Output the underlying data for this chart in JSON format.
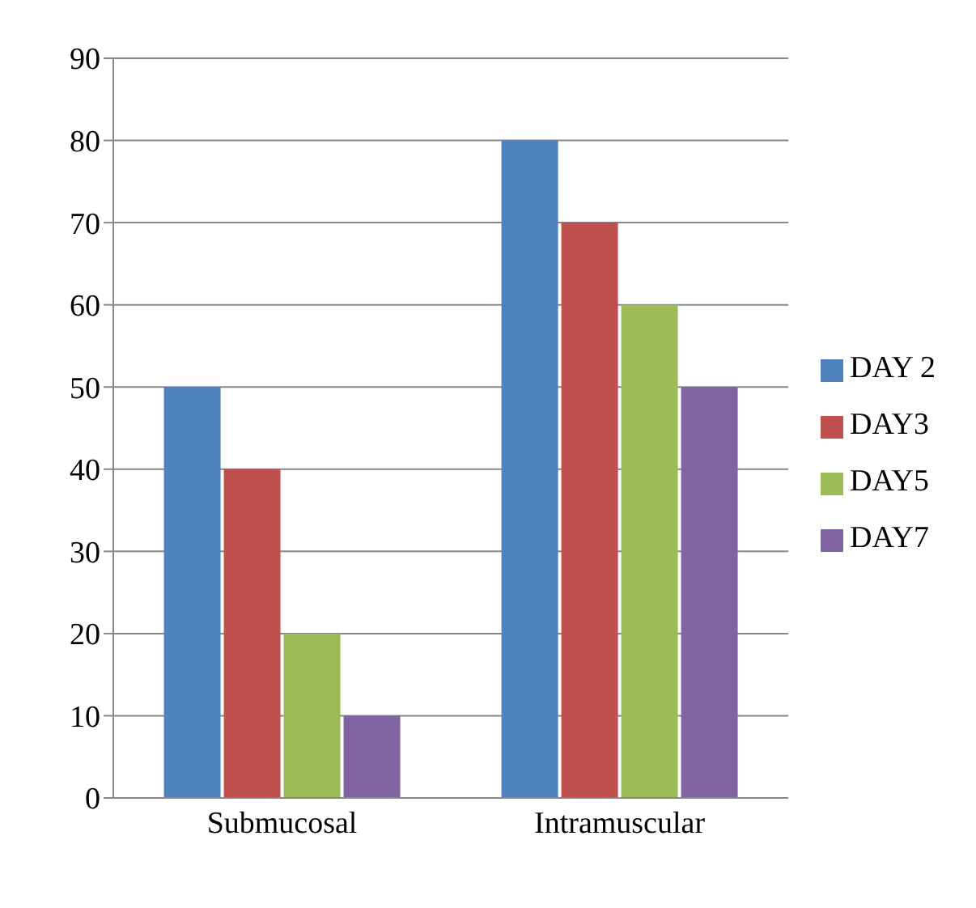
{
  "chart_data": {
    "type": "bar",
    "categories": [
      "Submucosal",
      "Intramuscular"
    ],
    "series": [
      {
        "name": "DAY 2",
        "color": "#4f81bd",
        "values": [
          50,
          80
        ]
      },
      {
        "name": "DAY3",
        "color": "#c0504d",
        "values": [
          40,
          70
        ]
      },
      {
        "name": "DAY5",
        "color": "#9bbb59",
        "values": [
          20,
          60
        ]
      },
      {
        "name": "DAY7",
        "color": "#8064a2",
        "values": [
          10,
          50
        ]
      }
    ],
    "ylim": [
      0,
      90
    ],
    "yticks": [
      0,
      10,
      20,
      30,
      40,
      50,
      60,
      70,
      80,
      90
    ],
    "grid": "y",
    "legend": "right"
  }
}
